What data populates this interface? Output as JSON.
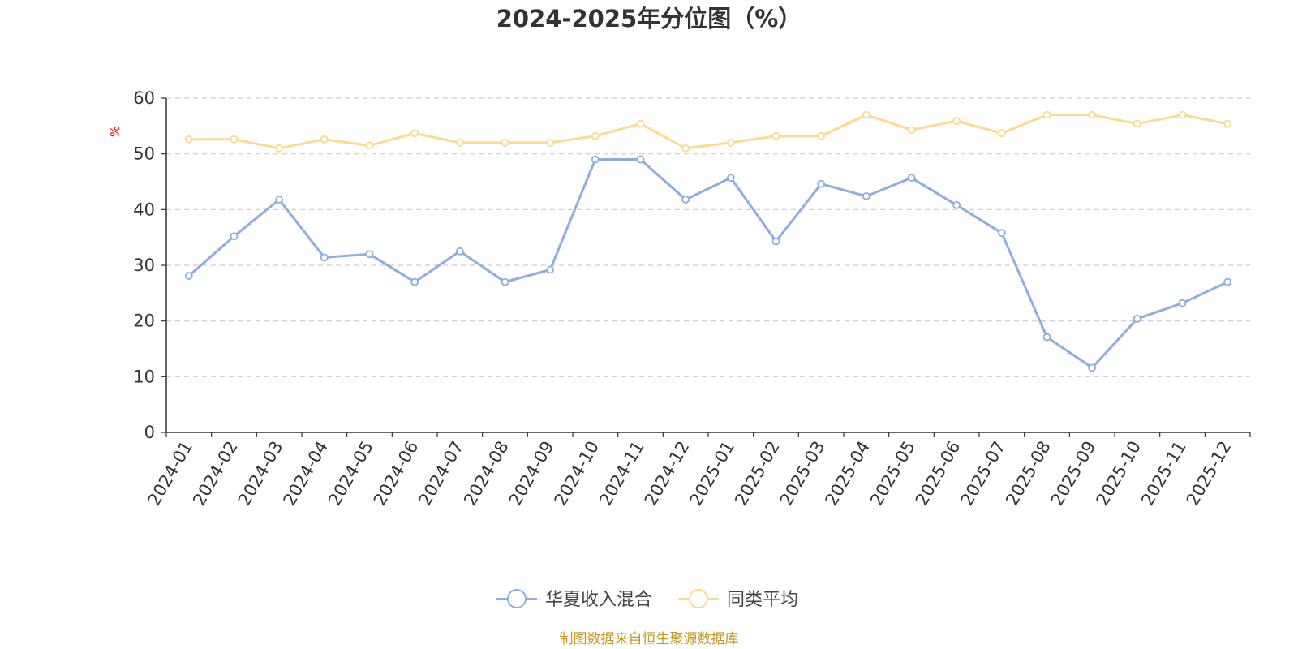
{
  "chart_data": {
    "type": "line",
    "title": "2024-2025年分位图（%）",
    "ylabel": "%",
    "xlabel": "",
    "ylim": [
      0,
      60
    ],
    "yticks": [
      0,
      10,
      20,
      30,
      40,
      50,
      60
    ],
    "grid": true,
    "legend_position": "bottom-center",
    "categories": [
      "2024-01",
      "2024-02",
      "2024-03",
      "2024-04",
      "2024-05",
      "2024-06",
      "2024-07",
      "2024-08",
      "2024-09",
      "2024-10",
      "2024-11",
      "2024-12",
      "2025-01",
      "2025-02",
      "2025-03",
      "2025-04",
      "2025-05",
      "2025-06",
      "2025-07",
      "2025-08",
      "2025-09",
      "2025-10",
      "2025-11",
      "2025-12"
    ],
    "series": [
      {
        "name": "华夏收入混合",
        "color": "#8eaede",
        "values": [
          28.1,
          35.2,
          41.8,
          31.4,
          32.0,
          27.0,
          32.5,
          27.0,
          29.2,
          49.0,
          49.0,
          41.8,
          45.7,
          34.3,
          44.6,
          42.4,
          45.7,
          40.8,
          35.8,
          17.1,
          11.6,
          20.4,
          23.2,
          27.0
        ]
      },
      {
        "name": "同类平均",
        "color": "#fbd98e",
        "values": [
          52.6,
          52.6,
          51.0,
          52.6,
          51.5,
          53.7,
          52.0,
          52.0,
          52.0,
          53.2,
          55.4,
          51.0,
          52.0,
          53.2,
          53.2,
          57.0,
          54.3,
          55.9,
          53.7,
          57.0,
          57.0,
          55.4,
          57.0,
          55.4
        ]
      }
    ]
  },
  "source_text": "制图数据来自恒生聚源数据库",
  "colors": {
    "axis": "#333333",
    "grid": "#cccccc",
    "unit_label": "#ff0000",
    "source_text": "#c8961e"
  }
}
